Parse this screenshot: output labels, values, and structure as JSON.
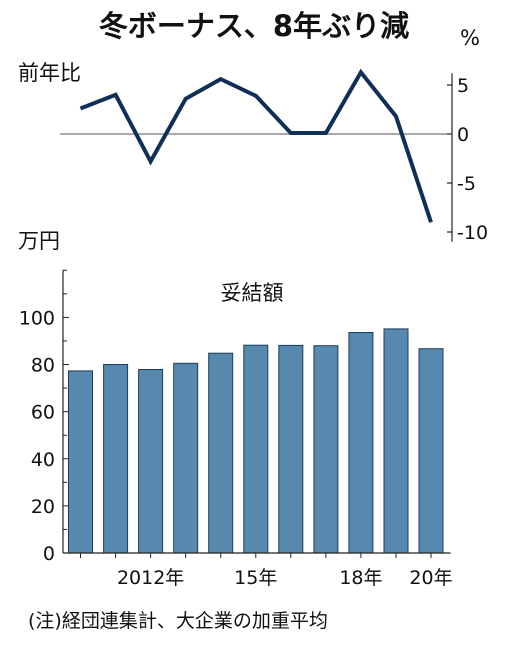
{
  "title": "冬ボーナス、8年ぶり減",
  "note": "(注)経団連集計、大企業の加重平均",
  "colors": {
    "line": "#0f2f57",
    "bar": "#5689ad",
    "bar_edge": "#1d3d5a",
    "axis": "#222222",
    "zero_line": "#555555"
  },
  "chart_data": [
    {
      "type": "line",
      "name": "yoy-change",
      "ylabel": "前年比",
      "unit": "%",
      "ylim": [
        -10,
        5
      ],
      "yticks": [
        5,
        0,
        -5,
        -10
      ],
      "ytick_labels": [
        "5",
        "0",
        "-5",
        "-10"
      ],
      "categories": [
        "2010",
        "2011",
        "2012",
        "2013",
        "2014",
        "2015",
        "2016",
        "2017",
        "2018",
        "2019",
        "2020"
      ],
      "values": [
        2.6,
        4.0,
        -2.8,
        3.6,
        5.6,
        3.9,
        0.1,
        0.1,
        6.3,
        1.8,
        -9.0
      ],
      "grid": false
    },
    {
      "type": "bar",
      "name": "settlement-amount",
      "label": "妥結額",
      "ylabel": "万円",
      "ylim": [
        0,
        120
      ],
      "yticks": [
        0,
        20,
        40,
        60,
        80,
        100
      ],
      "ytick_labels": [
        "0",
        "20",
        "40",
        "60",
        "80",
        "100"
      ],
      "categories": [
        "2010",
        "2011",
        "2012",
        "2013",
        "2014",
        "2015",
        "2016",
        "2017",
        "2018",
        "2019",
        "2020"
      ],
      "values": [
        77.3,
        80.0,
        77.9,
        80.5,
        84.8,
        88.2,
        88.1,
        88.0,
        93.6,
        95.1,
        86.7
      ],
      "xtick_labels": [
        {
          "index": 2,
          "text": "2012年"
        },
        {
          "index": 5,
          "text": "15年"
        },
        {
          "index": 8,
          "text": "18年"
        },
        {
          "index": 10,
          "text": "20年"
        }
      ],
      "grid": false
    }
  ]
}
